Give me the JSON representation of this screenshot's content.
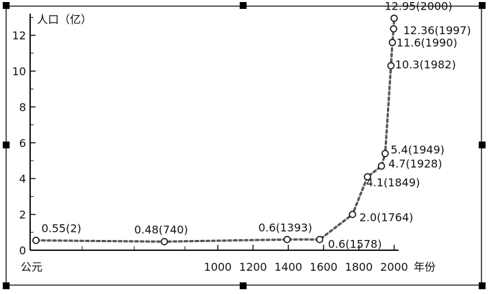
{
  "chart_data": {
    "type": "line",
    "ylabel": "人口（亿）",
    "xlabel": "年份",
    "x_start_label": "公元",
    "ylim": [
      0,
      13
    ],
    "xlim": [
      0,
      2000
    ],
    "y_ticks": [
      0,
      2,
      4,
      6,
      8,
      10,
      12
    ],
    "x_ticks": [
      1000,
      1200,
      1400,
      1600,
      1800,
      2000
    ],
    "series": [
      {
        "values": [
          {
            "x": 2,
            "y": 0.55,
            "label": "0.55(2)"
          },
          {
            "x": 740,
            "y": 0.48,
            "label": "0.48(740)"
          },
          {
            "x": 1393,
            "y": 0.6,
            "label": "0.6(1393)"
          },
          {
            "x": 1578,
            "y": 0.6,
            "label": "0.6(1578)"
          },
          {
            "x": 1764,
            "y": 2.0,
            "label": "2.0(1764)"
          },
          {
            "x": 1849,
            "y": 4.1,
            "label": "4.1(1849)"
          },
          {
            "x": 1928,
            "y": 4.7,
            "label": "4.7(1928)"
          },
          {
            "x": 1949,
            "y": 5.4,
            "label": "5.4(1949)"
          },
          {
            "x": 1982,
            "y": 10.3,
            "label": "10.3(1982)"
          },
          {
            "x": 1990,
            "y": 11.6,
            "label": "11.6(1990)"
          },
          {
            "x": 1997,
            "y": 12.36,
            "label": "12.36(1997)"
          },
          {
            "x": 2000,
            "y": 12.95,
            "label": "12.95(2000)"
          }
        ]
      }
    ],
    "grid": false
  }
}
